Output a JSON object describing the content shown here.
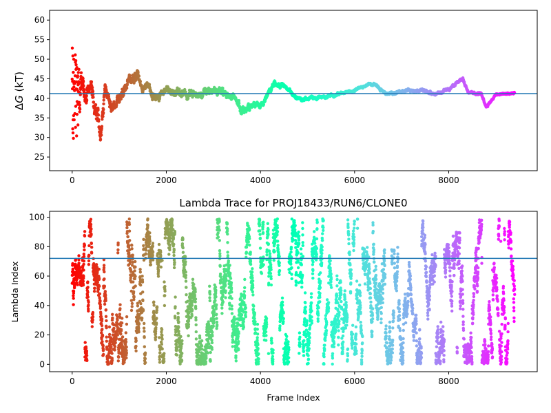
{
  "chart_data": [
    {
      "type": "scatter",
      "title": "",
      "xlabel": "",
      "ylabel": "ΔG (kT)",
      "ylabel_symbol": "ΔG",
      "ylabel_italic_part": "G",
      "ylabel_unit": " (kT)",
      "xlim": [
        -480,
        9880
      ],
      "ylim": [
        21.5,
        62.5
      ],
      "xticks": [
        0,
        2000,
        4000,
        6000,
        8000
      ],
      "xtick_labels": [
        "0",
        "2000",
        "4000",
        "6000",
        "8000"
      ],
      "yticks": [
        25,
        30,
        35,
        40,
        45,
        50,
        55,
        60
      ],
      "ytick_labels": [
        "25",
        "30",
        "35",
        "40",
        "45",
        "50",
        "55",
        "60"
      ],
      "hline": 41.2,
      "hline_color": "#1f77b4",
      "colormap": "rainbow (red at frame 0 → violet at last frame)",
      "n_frames": 9400,
      "trace_profile": {
        "x": [
          0,
          50,
          100,
          200,
          300,
          400,
          500,
          600,
          700,
          800,
          900,
          1000,
          1200,
          1400,
          1500,
          1600,
          1700,
          2000,
          2500,
          3000,
          3500,
          3600,
          4000,
          4300,
          4500,
          4800,
          5200,
          5600,
          6000,
          6400,
          6700,
          7000,
          7400,
          7800,
          8200,
          8300,
          8400,
          8700,
          8800,
          9000,
          9400
        ],
        "y": [
          41,
          42,
          39,
          45,
          40,
          44,
          38,
          30,
          44,
          39,
          37,
          41,
          44,
          46,
          42,
          44,
          40,
          42,
          41,
          42,
          40,
          37,
          38,
          44,
          43,
          40,
          40,
          41,
          42,
          44,
          41,
          42,
          42,
          41,
          44,
          45,
          42,
          41,
          38,
          41,
          41.5
        ],
        "spread": [
          14,
          13,
          9,
          7,
          6,
          5,
          5,
          6,
          4,
          3,
          3,
          3,
          3,
          3,
          2,
          2,
          2,
          2,
          2,
          2,
          2,
          2,
          1.5,
          1.5,
          1.2,
          1,
          0.8,
          0.8,
          0.8,
          0.8,
          0.8,
          0.8,
          0.8,
          0.8,
          0.8,
          0.8,
          0.8,
          0.8,
          0.8,
          0.6,
          0.5
        ]
      }
    },
    {
      "type": "scatter",
      "title": "Lambda Trace for PROJ18433/RUN6/CLONE0",
      "xlabel": "Frame Index",
      "ylabel": "Lambda Index",
      "xlim": [
        -480,
        9880
      ],
      "ylim": [
        -5,
        104
      ],
      "xticks": [
        0,
        2000,
        4000,
        6000,
        8000
      ],
      "xtick_labels": [
        "0",
        "2000",
        "4000",
        "6000",
        "8000"
      ],
      "yticks": [
        0,
        20,
        40,
        60,
        80,
        100
      ],
      "ytick_labels": [
        "0",
        "20",
        "40",
        "60",
        "80",
        "100"
      ],
      "hline": 72,
      "hline_color": "#1f77b4",
      "colormap": "rainbow (red at frame 0 → violet at last frame)",
      "n_frames": 9400,
      "y_range": [
        0,
        99
      ]
    }
  ]
}
